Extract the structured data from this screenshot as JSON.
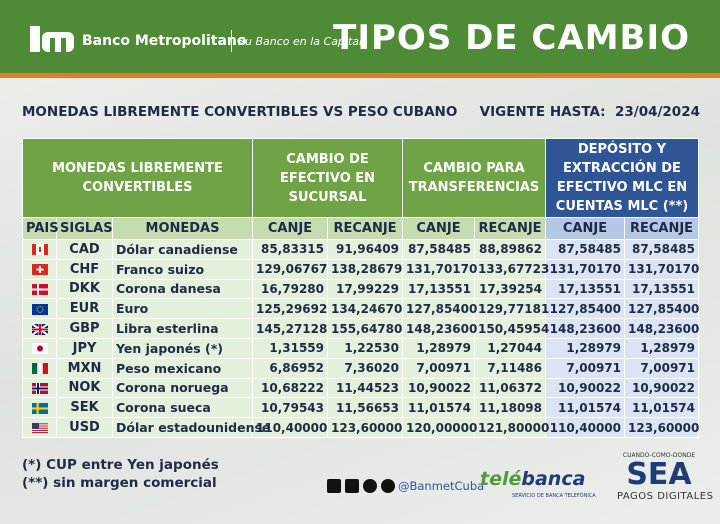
{
  "header": {
    "bank_name": "Banco Metropolitano",
    "slogan": "Su Banco en la Capital",
    "title": "TIPOS DE CAMBIO"
  },
  "subheader": {
    "left": "MONEDAS LIBREMENTE CONVERTIBLES VS PESO CUBANO",
    "valid_label": "VIGENTE HASTA:",
    "valid_date": "23/04/2024"
  },
  "table": {
    "groups": [
      "MONEDAS LIBREMENTE CONVERTIBLES",
      "CAMBIO DE EFECTIVO EN SUCURSAL",
      "CAMBIO PARA TRANSFERENCIAS",
      "DEPÓSITO Y EXTRACCIÓN DE EFECTIVO MLC EN CUENTAS MLC (**)"
    ],
    "columns": [
      "PAIS",
      "SIGLAS",
      "MONEDAS",
      "CANJE",
      "RECANJE",
      "CANJE",
      "RECANJE",
      "CANJE",
      "RECANJE"
    ],
    "rows": [
      {
        "code": "CAD",
        "name": "Dólar canadiense",
        "values": [
          "85,83315",
          "91,96409",
          "87,58485",
          "88,89862",
          "87,58485",
          "87,58485"
        ]
      },
      {
        "code": "CHF",
        "name": "Franco suizo",
        "values": [
          "129,06767",
          "138,28679",
          "131,70170",
          "133,67723",
          "131,70170",
          "131,70170"
        ]
      },
      {
        "code": "DKK",
        "name": "Corona danesa",
        "values": [
          "16,79280",
          "17,99229",
          "17,13551",
          "17,39254",
          "17,13551",
          "17,13551"
        ]
      },
      {
        "code": "EUR",
        "name": "Euro",
        "values": [
          "125,29692",
          "134,24670",
          "127,85400",
          "129,77181",
          "127,85400",
          "127,85400"
        ]
      },
      {
        "code": "GBP",
        "name": "Libra esterlina",
        "values": [
          "145,27128",
          "155,64780",
          "148,23600",
          "150,45954",
          "148,23600",
          "148,23600"
        ]
      },
      {
        "code": "JPY",
        "name": "Yen japonés (*)",
        "values": [
          "1,31559",
          "1,22530",
          "1,28979",
          "1,27044",
          "1,28979",
          "1,28979"
        ]
      },
      {
        "code": "MXN",
        "name": "Peso mexicano",
        "values": [
          "6,86952",
          "7,36020",
          "7,00971",
          "7,11486",
          "7,00971",
          "7,00971"
        ]
      },
      {
        "code": "NOK",
        "name": "Corona noruega",
        "values": [
          "10,68222",
          "11,44523",
          "10,90022",
          "11,06372",
          "10,90022",
          "10,90022"
        ]
      },
      {
        "code": "SEK",
        "name": "Corona sueca",
        "values": [
          "10,79543",
          "11,56653",
          "11,01574",
          "11,18098",
          "11,01574",
          "11,01574"
        ]
      },
      {
        "code": "USD",
        "name": "Dólar estadounidense",
        "values": [
          "110,40000",
          "123,60000",
          "120,00000",
          "121,80000",
          "110,40000",
          "123,60000"
        ]
      }
    ]
  },
  "footer": {
    "notes": [
      "(*) CUP entre Yen japonés",
      "(**) sin margen comercial"
    ],
    "social": "@BanmetCuba",
    "telebanca": {
      "part1": "telé",
      "part2": "banca",
      "tagline": "SERVICIO DE BANCA TELEFÓNICA"
    },
    "sea": {
      "top": "CUANDO-COMO-DONDE",
      "logo": "SEA",
      "bottom": "PAGOS DIGITALES"
    }
  }
}
